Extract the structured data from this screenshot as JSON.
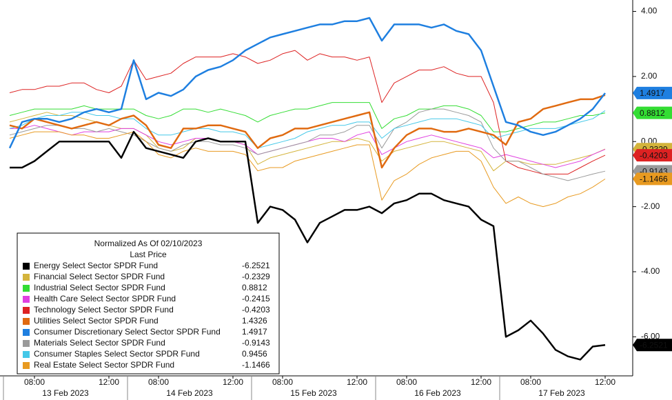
{
  "chart_data": {
    "type": "line",
    "legend_title": "Normalized As Of 02/10/2023",
    "legend_subtitle": "Last Price",
    "categories": [
      null,
      null,
      "08:00",
      null,
      null,
      null,
      null,
      null,
      "12:00",
      null,
      null,
      null,
      "08:00",
      null,
      null,
      null,
      null,
      null,
      "12:00",
      null,
      null,
      null,
      "08:00",
      null,
      null,
      null,
      null,
      null,
      "12:00",
      null,
      null,
      null,
      "08:00",
      null,
      null,
      null,
      null,
      null,
      "12:00",
      null,
      null,
      null,
      "08:00",
      null,
      null,
      null,
      null,
      null,
      "12:00"
    ],
    "days": [
      "13 Feb 2023",
      "14 Feb 2023",
      "15 Feb 2023",
      "16 Feb 2023",
      "17 Feb 2023"
    ],
    "ylim": [
      -7.2,
      4.35
    ],
    "yticks": [
      {
        "value": 4,
        "label": "4.00"
      },
      {
        "value": 2,
        "label": "2.00"
      },
      {
        "value": 0,
        "label": "0.00"
      },
      {
        "value": -2,
        "label": "-2.00"
      },
      {
        "value": -4,
        "label": "-4.00"
      },
      {
        "value": -6,
        "label": "-6.00"
      }
    ],
    "series": [
      {
        "name": "Energy Select Sector SPDR Fund",
        "color": "#000000",
        "width": 2.5,
        "last_price": -6.2521,
        "axis_tag": true,
        "tag_text": "#ffffff",
        "values": [
          -0.8,
          -0.8,
          -0.6,
          -0.3,
          0,
          0,
          0,
          0,
          0,
          -0.5,
          0.3,
          -0.2,
          -0.3,
          -0.4,
          -0.5,
          0,
          0.1,
          0,
          0,
          0,
          -2.5,
          -2.0,
          -2.1,
          -2.4,
          -3.1,
          -2.5,
          -2.3,
          -2.1,
          -2.1,
          -2.0,
          -2.2,
          -1.9,
          -1.8,
          -1.6,
          -1.6,
          -1.8,
          -1.9,
          -2.0,
          -2.4,
          -2.6,
          -6.0,
          -5.8,
          -5.5,
          -5.9,
          -6.4,
          -6.6,
          -6.7,
          -6.3,
          -6.25
        ]
      },
      {
        "name": "Financial Select Sector SPDR Fund",
        "color": "#d4b43c",
        "width": 1,
        "last_price": -0.2329,
        "axis_tag": true,
        "tag_text": "#000000",
        "values": [
          0.6,
          0.7,
          0.8,
          0.9,
          0.8,
          0.8,
          0.7,
          0.6,
          0.5,
          0.4,
          0.4,
          0.2,
          -0.2,
          -0.3,
          -0.2,
          0.1,
          0.1,
          0,
          0,
          -0.1,
          -0.7,
          -0.5,
          -0.4,
          -0.3,
          -0.2,
          -0.1,
          0,
          0,
          0.1,
          0,
          -0.6,
          -0.3,
          -0.2,
          -0.1,
          0,
          0,
          -0.1,
          -0.2,
          -0.3,
          -0.9,
          -0.6,
          -0.6,
          -0.7,
          -0.7,
          -0.7,
          -0.6,
          -0.5,
          -0.4,
          -0.23
        ]
      },
      {
        "name": "Industrial Select Sector SPDR Fund",
        "color": "#33dd33",
        "width": 1,
        "last_price": 0.8812,
        "axis_tag": true,
        "tag_text": "#000000",
        "values": [
          0.8,
          0.9,
          1.0,
          1.0,
          1.0,
          1.0,
          1.1,
          1.0,
          1.0,
          1.0,
          1.0,
          0.8,
          0.7,
          0.8,
          1.0,
          1.0,
          0.9,
          1.0,
          0.9,
          0.8,
          0.6,
          0.8,
          0.9,
          1.0,
          1.0,
          1.1,
          1.2,
          1.2,
          1.2,
          1.2,
          0.4,
          0.7,
          0.8,
          1.0,
          1.0,
          1.1,
          1.1,
          1.0,
          0.8,
          0.3,
          0.3,
          0.4,
          0.5,
          0.6,
          0.6,
          0.7,
          0.8,
          0.8,
          0.88
        ]
      },
      {
        "name": "Health Care Select Sector SPDR Fund",
        "color": "#e040e0",
        "width": 1,
        "last_price": -0.2415,
        "axis_tag": false,
        "tag_text": "#000000",
        "values": [
          0.4,
          0.4,
          0.5,
          0.4,
          0.3,
          0.2,
          0.3,
          0.3,
          0.3,
          0.4,
          0.4,
          0.2,
          0,
          -0.1,
          0,
          0.1,
          0.1,
          0,
          0,
          -0.1,
          -0.4,
          -0.3,
          -0.2,
          -0.1,
          0,
          0.1,
          0.1,
          0,
          0.2,
          0.3,
          -0.4,
          -0.2,
          0,
          0.1,
          0.2,
          0.1,
          0,
          -0.1,
          -0.2,
          -0.5,
          -0.4,
          -0.5,
          -0.6,
          -0.7,
          -0.8,
          -0.7,
          -0.6,
          -0.4,
          -0.24
        ]
      },
      {
        "name": "Technology Select Sector SPDR Fund",
        "color": "#dd2222",
        "width": 1,
        "last_price": -0.4203,
        "axis_tag": true,
        "tag_text": "#000000",
        "values": [
          1.5,
          1.6,
          1.6,
          1.7,
          1.7,
          1.8,
          1.8,
          1.6,
          1.5,
          1.7,
          2.5,
          1.9,
          2.0,
          2.1,
          2.4,
          2.6,
          2.6,
          2.6,
          2.7,
          2.6,
          2.4,
          2.5,
          2.7,
          2.8,
          2.5,
          2.7,
          2.6,
          2.6,
          2.5,
          2.6,
          1.2,
          1.8,
          2.0,
          2.2,
          2.2,
          2.3,
          2.1,
          2.0,
          2.0,
          1.2,
          -0.6,
          -0.8,
          -0.9,
          -1.0,
          -1.0,
          -1.0,
          -0.8,
          -0.6,
          -0.42
        ]
      },
      {
        "name": "Utilities Select Sector SPDR Fund",
        "color": "#e06a10",
        "width": 2.5,
        "last_price": 1.4326,
        "axis_tag": false,
        "tag_text": "#000000",
        "values": [
          0.5,
          0.4,
          0.7,
          0.6,
          0.5,
          0.4,
          0.5,
          0.6,
          0.5,
          0.7,
          0.8,
          0.5,
          -0.1,
          -0.2,
          0.4,
          0.4,
          0.5,
          0.5,
          0.4,
          0.3,
          -0.2,
          0.1,
          0.2,
          0.4,
          0.4,
          0.5,
          0.6,
          0.7,
          0.8,
          0.9,
          -0.8,
          -0.2,
          0.2,
          0.4,
          0.4,
          0.3,
          0.3,
          0.4,
          0.3,
          0.2,
          -0.1,
          0.6,
          0.7,
          1.0,
          1.1,
          1.2,
          1.3,
          1.3,
          1.43
        ]
      },
      {
        "name": "Consumer Discretionary Select Sector SPDR Fund",
        "color": "#1e7fe0",
        "width": 2.5,
        "last_price": 1.4917,
        "axis_tag": true,
        "tag_text": "#ffffff",
        "values": [
          -0.2,
          0.6,
          0.7,
          0.7,
          0.6,
          0.7,
          0.9,
          1.0,
          0.9,
          1.0,
          2.5,
          1.3,
          1.5,
          1.4,
          1.6,
          2.0,
          2.2,
          2.3,
          2.5,
          2.8,
          3.0,
          3.2,
          3.3,
          3.4,
          3.5,
          3.6,
          3.6,
          3.7,
          3.7,
          3.8,
          3.1,
          3.6,
          3.6,
          3.6,
          3.5,
          3.6,
          3.4,
          3.3,
          2.8,
          1.7,
          0.6,
          0.5,
          0.3,
          0.2,
          0.3,
          0.5,
          0.7,
          1.0,
          1.49
        ]
      },
      {
        "name": "Materials Select Sector SPDR Fund",
        "color": "#9a9a9a",
        "width": 1,
        "last_price": -0.9143,
        "axis_tag": true,
        "tag_text": "#ffffff",
        "values": [
          0.2,
          0.3,
          0.4,
          0.5,
          0.5,
          0.4,
          0.4,
          0.3,
          0.4,
          0.3,
          0.2,
          0,
          -0.2,
          -0.3,
          -0.1,
          0,
          0,
          -0.1,
          -0.1,
          -0.2,
          -0.4,
          -0.3,
          -0.2,
          -0.1,
          0,
          0.2,
          0.2,
          0.3,
          0.5,
          0.5,
          -0.2,
          0.4,
          0.6,
          0.9,
          1.0,
          1.0,
          0.9,
          0.8,
          0.6,
          -0.2,
          -0.6,
          -0.6,
          -0.8,
          -1.0,
          -1.1,
          -1.2,
          -1.1,
          -1.0,
          -0.91
        ]
      },
      {
        "name": "Consumer Staples Select Sector SPDR Fund",
        "color": "#44c8e8",
        "width": 1,
        "last_price": 0.9456,
        "axis_tag": false,
        "tag_text": "#000000",
        "values": [
          0.4,
          0.5,
          0.7,
          0.8,
          0.8,
          0.9,
          0.9,
          0.8,
          0.8,
          0.7,
          0.7,
          0.4,
          0.2,
          0.2,
          0.3,
          0.4,
          0.4,
          0.3,
          0.3,
          0.2,
          -0.2,
          -0.1,
          0,
          0.1,
          0.3,
          0.4,
          0.5,
          0.5,
          0.6,
          0.6,
          0.1,
          0.4,
          0.5,
          0.6,
          0.7,
          0.7,
          0.7,
          0.6,
          0.5,
          0.1,
          0.2,
          0.3,
          0.4,
          0.4,
          0.4,
          0.5,
          0.6,
          0.7,
          0.95
        ]
      },
      {
        "name": "Real Estate Select Sector SPDR Fund",
        "color": "#e89a20",
        "width": 1,
        "last_price": -1.1466,
        "axis_tag": true,
        "tag_text": "#000000",
        "values": [
          0.1,
          0.2,
          0.3,
          0.3,
          0.3,
          0.2,
          0.2,
          0.1,
          0.1,
          0.2,
          0.3,
          0,
          -0.4,
          -0.5,
          -0.3,
          -0.2,
          -0.3,
          -0.3,
          -0.3,
          -0.4,
          -0.9,
          -0.8,
          -0.8,
          -0.6,
          -0.5,
          -0.4,
          -0.3,
          -0.2,
          -0.1,
          -0.1,
          -1.8,
          -1.2,
          -1.0,
          -0.7,
          -0.5,
          -0.4,
          -0.3,
          -0.3,
          -0.6,
          -1.4,
          -1.9,
          -1.7,
          -1.9,
          -2.0,
          -1.9,
          -1.7,
          -1.6,
          -1.4,
          -1.15
        ]
      }
    ]
  }
}
